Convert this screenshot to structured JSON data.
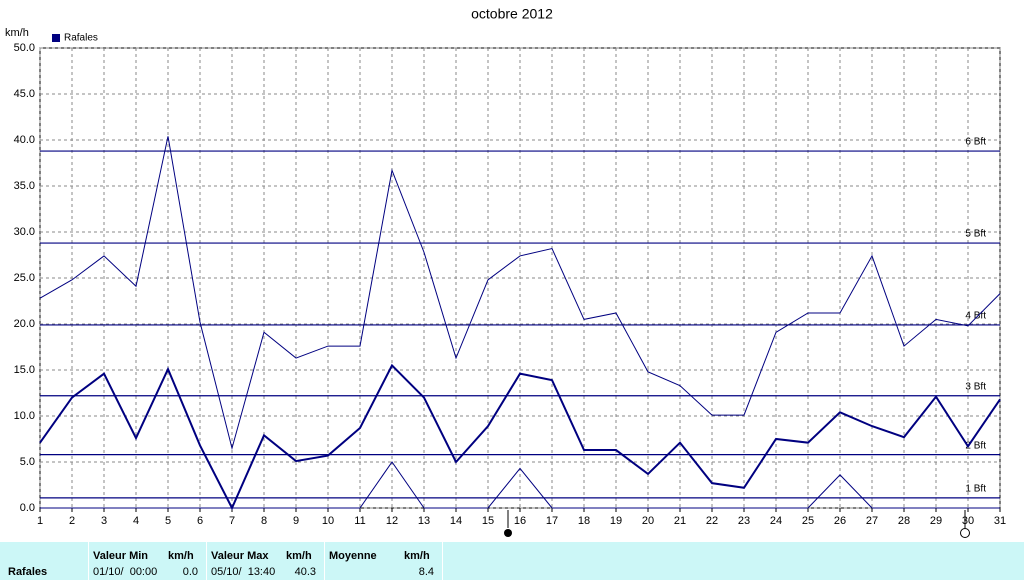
{
  "chart_data": {
    "type": "line",
    "title": "octobre 2012",
    "y_axis_label": "km/h",
    "x": [
      1,
      2,
      3,
      4,
      5,
      6,
      7,
      8,
      9,
      10,
      11,
      12,
      13,
      14,
      15,
      16,
      17,
      18,
      19,
      20,
      21,
      22,
      23,
      24,
      25,
      26,
      27,
      28,
      29,
      30,
      31
    ],
    "xlim": [
      1,
      31
    ],
    "xticks": [
      1,
      2,
      3,
      4,
      5,
      6,
      7,
      8,
      9,
      10,
      11,
      12,
      13,
      14,
      15,
      16,
      17,
      18,
      19,
      20,
      21,
      22,
      23,
      24,
      25,
      26,
      27,
      28,
      29,
      30,
      31
    ],
    "ylim": [
      0,
      50
    ],
    "yticks": [
      {
        "value": 0,
        "label": "0.0"
      },
      {
        "value": 5,
        "label": "5.0"
      },
      {
        "value": 10,
        "label": "10.0"
      },
      {
        "value": 15,
        "label": "15.0"
      },
      {
        "value": 20,
        "label": "20.0"
      },
      {
        "value": 25,
        "label": "25.0"
      },
      {
        "value": 30,
        "label": "30.0"
      },
      {
        "value": 35,
        "label": "35.0"
      },
      {
        "value": 40,
        "label": "40.0"
      },
      {
        "value": 45,
        "label": "45.0"
      },
      {
        "value": 50,
        "label": "50.0"
      }
    ],
    "grid": true,
    "series": [
      {
        "name": "Rafales",
        "color": "#000080",
        "width": 2,
        "values": [
          7.1,
          12.0,
          14.6,
          7.6,
          15.1,
          6.8,
          0,
          7.9,
          5.1,
          5.7,
          8.7,
          15.5,
          12.0,
          5.0,
          8.9,
          14.6,
          13.9,
          6.3,
          6.3,
          3.7,
          7.1,
          2.7,
          2.2,
          7.5,
          7.1,
          10.4,
          8.9,
          7.7,
          12.1,
          6.7,
          11.8
        ]
      },
      {
        "color": "#000080",
        "width": 1,
        "values": [
          22.8,
          24.8,
          27.4,
          24.1,
          40.4,
          20.2,
          6.5,
          19.1,
          16.3,
          17.6,
          17.6,
          36.7,
          27.8,
          16.3,
          24.8,
          27.4,
          28.2,
          20.5,
          21.2,
          14.8,
          13.3,
          10.1,
          10.1,
          19.1,
          21.2,
          21.2,
          27.4,
          17.6,
          20.5,
          19.8,
          23.3
        ]
      },
      {
        "color": "#000080",
        "width": 1,
        "values": [
          0,
          0,
          0,
          0,
          0,
          0,
          0,
          0,
          0,
          0,
          0,
          5.0,
          0,
          0,
          0,
          4.3,
          0,
          0,
          0,
          0,
          0,
          0,
          0,
          0,
          0,
          3.6,
          0,
          0,
          0,
          0,
          0
        ]
      }
    ],
    "reference_lines": [
      {
        "value": 1.1,
        "label": "1 Bft"
      },
      {
        "value": 5.8,
        "label": "2 Bft"
      },
      {
        "value": 12.2,
        "label": "3 Bft"
      },
      {
        "value": 19.9,
        "label": "4 Bft"
      },
      {
        "value": 28.8,
        "label": "5 Bft"
      },
      {
        "value": 38.8,
        "label": "6 Bft"
      }
    ],
    "reference_color": "#000080"
  },
  "table": {
    "row_label": "Rafales",
    "blocks": [
      {
        "header": "Valeur Min",
        "unit": "km/h",
        "date": "01/10/  00:00",
        "value": "0.0"
      },
      {
        "header": "Valeur Max",
        "unit": "km/h",
        "date": "05/10/  13:40",
        "value": "40.3"
      },
      {
        "header": "Moyenne",
        "unit": "km/h",
        "date": "",
        "value": "8.4"
      }
    ]
  }
}
